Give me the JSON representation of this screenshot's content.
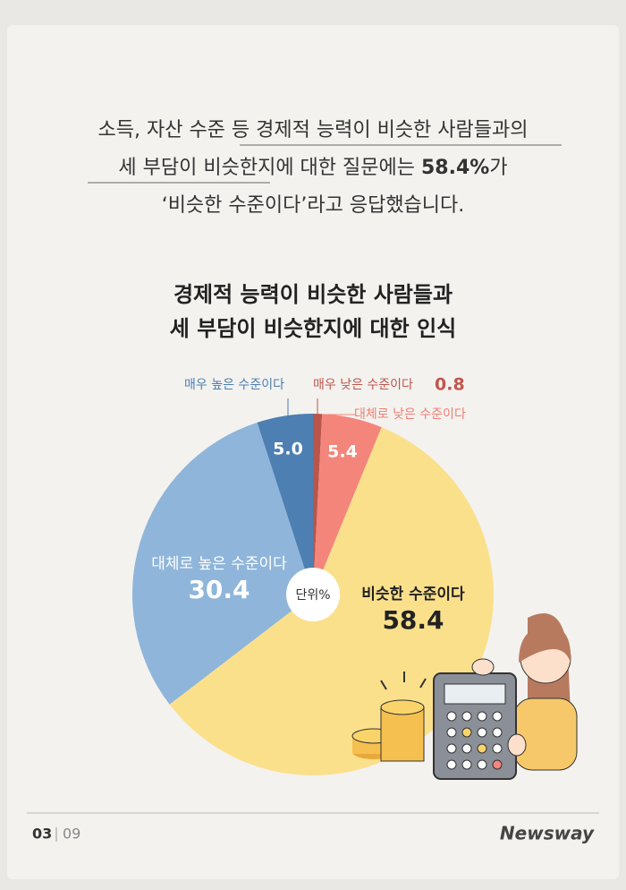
{
  "intro": [
    "소득, 자산 수준 등 경제적 능력이 비슷한 사람들과의",
    "세 부담이 비슷한지에 대한 질문에는 ",
    "58.4%",
    "가",
    "‘비슷한 수준이다’라고 응답했습니다."
  ],
  "chart_data": {
    "type": "pie",
    "title": [
      "경제적 능력이 비슷한 사람들과",
      "세 부담이 비슷한지에 대한 인식"
    ],
    "unit": "단위%",
    "categories": [
      "매우 낮은 수준이다",
      "대체로 낮은 수준이다",
      "비슷한 수준이다",
      "대체로 높은 수준이다",
      "매우 높은 수준이다"
    ],
    "values": [
      0.8,
      5.4,
      58.4,
      30.4,
      5.0
    ],
    "value_labels": [
      "0.8",
      "5.4",
      "58.4",
      "30.4",
      "5.0"
    ],
    "colors": [
      "#b8564c",
      "#f4857a",
      "#fbe08c",
      "#8fb5da",
      "#4d7fb2"
    ]
  },
  "footer": {
    "page": "03",
    "total": "09",
    "brand": "Newsway"
  }
}
